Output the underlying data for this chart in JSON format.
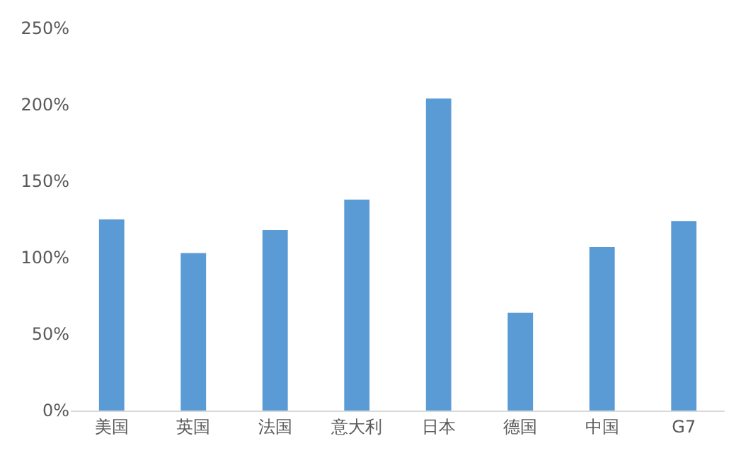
{
  "chart_data": {
    "type": "bar",
    "categories": [
      "美国",
      "英国",
      "法国",
      "意大利",
      "日本",
      "德国",
      "中国",
      "G7"
    ],
    "values": [
      125,
      103,
      118,
      138,
      204,
      64,
      107,
      124
    ],
    "color": "#5b9bd5",
    "ylim": [
      0,
      250
    ],
    "yticks": [
      {
        "value": 0,
        "label": "0%"
      },
      {
        "value": 50,
        "label": "50%"
      },
      {
        "value": 100,
        "label": "100%"
      },
      {
        "value": 150,
        "label": "150%"
      },
      {
        "value": 200,
        "label": "200%"
      },
      {
        "value": 250,
        "label": "250%"
      }
    ],
    "grid": false
  }
}
